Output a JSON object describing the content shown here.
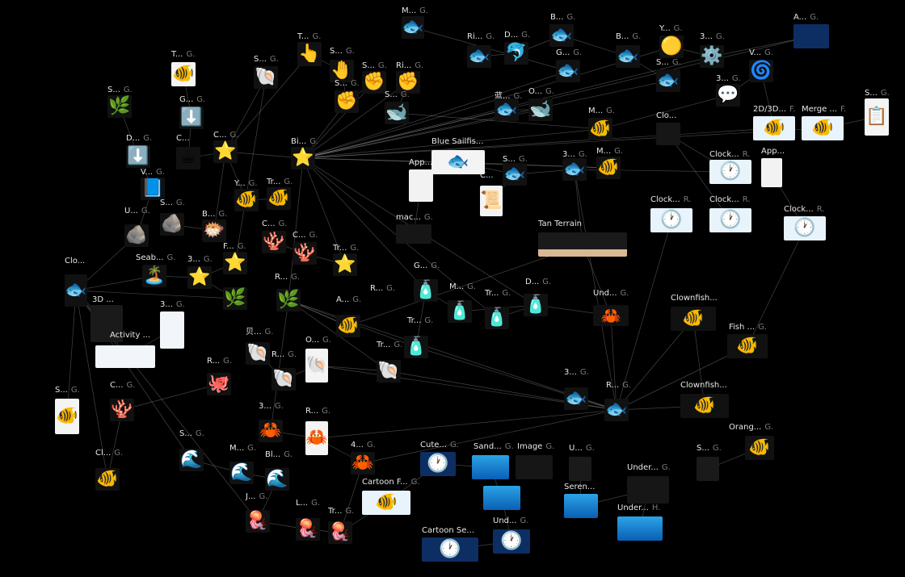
{
  "canvas": {
    "background": "#000000",
    "edge_color": "#bfbfbf"
  },
  "nodes": [
    {
      "id": "n1",
      "label": "M...",
      "tag": "G.",
      "icon": "🐟",
      "style": "icon"
    },
    {
      "id": "n2",
      "label": "B...",
      "tag": "G.",
      "icon": "🐟",
      "style": "icon"
    },
    {
      "id": "n3",
      "label": "A...",
      "tag": "G.",
      "icon": "clownfish-banner",
      "style": "wide"
    },
    {
      "id": "n4",
      "label": "T...",
      "tag": "G.",
      "icon": "👆",
      "style": "icon"
    },
    {
      "id": "n5",
      "label": "Ri...",
      "tag": "G.",
      "icon": "🐟",
      "style": "icon"
    },
    {
      "id": "n6",
      "label": "D...",
      "tag": "G.",
      "icon": "🐬",
      "style": "icon"
    },
    {
      "id": "n7",
      "label": "B...",
      "tag": "G.",
      "icon": "🐟",
      "style": "icon"
    },
    {
      "id": "n8",
      "label": "Y...",
      "tag": "G.",
      "icon": "🟡",
      "style": "icon"
    },
    {
      "id": "n9",
      "label": "3...",
      "tag": "G.",
      "icon": "⚙️",
      "style": "icon"
    },
    {
      "id": "n10",
      "label": "T...",
      "tag": "G.",
      "icon": "🐠",
      "style": "paper"
    },
    {
      "id": "n11",
      "label": "S...",
      "tag": "G.",
      "icon": "🐚",
      "style": "icon"
    },
    {
      "id": "n12",
      "label": "S...",
      "tag": "G.",
      "icon": "🤚",
      "style": "icon"
    },
    {
      "id": "n13",
      "label": "S...",
      "tag": "G.",
      "icon": "✊",
      "style": "icon"
    },
    {
      "id": "n14",
      "label": "Ri...",
      "tag": "G.",
      "icon": "✊",
      "style": "icon"
    },
    {
      "id": "n15",
      "label": "G...",
      "tag": "G.",
      "icon": "🐟",
      "style": "icon"
    },
    {
      "id": "n16",
      "label": "S...",
      "tag": "G.",
      "icon": "🐟",
      "style": "icon"
    },
    {
      "id": "n17",
      "label": "V...",
      "tag": "G.",
      "icon": "🌀",
      "style": "icon"
    },
    {
      "id": "n18",
      "label": "S...",
      "tag": "G.",
      "icon": "🌿",
      "style": "icon"
    },
    {
      "id": "n19",
      "label": "G...",
      "tag": "G.",
      "icon": "⬇️",
      "style": "icon"
    },
    {
      "id": "n20",
      "label": "S...",
      "tag": "G.",
      "icon": "✊",
      "style": "icon"
    },
    {
      "id": "n21",
      "label": "S...",
      "tag": "G.",
      "icon": "🐋",
      "style": "icon"
    },
    {
      "id": "n22",
      "label": "蓝...",
      "tag": "G.",
      "icon": "🐟",
      "style": "icon"
    },
    {
      "id": "n23",
      "label": "O...",
      "tag": "G.",
      "icon": "🐋",
      "style": "icon"
    },
    {
      "id": "n24",
      "label": "3...",
      "tag": "G.",
      "icon": "💬",
      "style": "icon"
    },
    {
      "id": "n25",
      "label": "S...",
      "tag": "G.",
      "icon": "📋",
      "style": "paper"
    },
    {
      "id": "n26",
      "label": "M...",
      "tag": "G.",
      "icon": "🐠",
      "style": "icon"
    },
    {
      "id": "n27",
      "label": "Clo...",
      "tag": "",
      "icon": "",
      "style": "black"
    },
    {
      "id": "n28",
      "label": "2D/3D...",
      "tag": "F.",
      "icon": "🐠",
      "style": "wide-light"
    },
    {
      "id": "n29",
      "label": "Merge ...",
      "tag": "F.",
      "icon": "🐠",
      "style": "wide-light"
    },
    {
      "id": "n30",
      "label": "D...",
      "tag": "G.",
      "icon": "⬇️",
      "style": "icon"
    },
    {
      "id": "n31",
      "label": "C...",
      "tag": "G.",
      "icon": "⭐",
      "style": "icon"
    },
    {
      "id": "n32",
      "label": "C...",
      "tag": "",
      "icon": "☕",
      "style": "icon"
    },
    {
      "id": "n33",
      "label": "Bi...",
      "tag": "G.",
      "icon": "⭐",
      "style": "icon"
    },
    {
      "id": "n34",
      "label": "Blue Sailfis...",
      "tag": "",
      "icon": "🐟",
      "style": "paper"
    },
    {
      "id": "n35",
      "label": "App...",
      "tag": "",
      "icon": "",
      "style": "doc"
    },
    {
      "id": "n36",
      "label": "S...",
      "tag": "G.",
      "icon": "🐟",
      "style": "icon"
    },
    {
      "id": "n37",
      "label": "3...",
      "tag": "G.",
      "icon": "🐟",
      "style": "icon"
    },
    {
      "id": "n38",
      "label": "M...",
      "tag": "G.",
      "icon": "🐠",
      "style": "icon"
    },
    {
      "id": "n39",
      "label": "Clock...",
      "tag": "R.",
      "icon": "🕐",
      "style": "wide-light"
    },
    {
      "id": "n40",
      "label": "App...",
      "tag": "",
      "icon": "",
      "style": "doc"
    },
    {
      "id": "n41",
      "label": "V...",
      "tag": "G.",
      "icon": "📘",
      "style": "icon"
    },
    {
      "id": "n42",
      "label": "C...",
      "tag": "",
      "icon": "📜",
      "style": "paper"
    },
    {
      "id": "n43",
      "label": "Y...",
      "tag": "G.",
      "icon": "🐠",
      "style": "icon"
    },
    {
      "id": "n44",
      "label": "Tr...",
      "tag": "G.",
      "icon": "🐠",
      "style": "icon"
    },
    {
      "id": "n45",
      "label": "S...",
      "tag": "G.",
      "icon": "🪨",
      "style": "icon"
    },
    {
      "id": "n46",
      "label": "U...",
      "tag": "G.",
      "icon": "🪨",
      "style": "icon"
    },
    {
      "id": "n47",
      "label": "B...",
      "tag": "G.",
      "icon": "🐡",
      "style": "icon"
    },
    {
      "id": "n48",
      "label": "mac...",
      "tag": "G.",
      "icon": "",
      "style": "black"
    },
    {
      "id": "n49",
      "label": "Tan Terrain",
      "tag": "",
      "icon": "",
      "style": "terrain"
    },
    {
      "id": "n50",
      "label": "Clock...",
      "tag": "R.",
      "icon": "🕐",
      "style": "wide-light"
    },
    {
      "id": "n51",
      "label": "Clock...",
      "tag": "R.",
      "icon": "🕐",
      "style": "wide-light"
    },
    {
      "id": "n52",
      "label": "Clock...",
      "tag": "R.",
      "icon": "🕐",
      "style": "wide-light"
    },
    {
      "id": "n53",
      "label": "C...",
      "tag": "G.",
      "icon": "🪸",
      "style": "icon"
    },
    {
      "id": "n54",
      "label": "C...",
      "tag": "G.",
      "icon": "🪸",
      "style": "icon"
    },
    {
      "id": "n55",
      "label": "F...",
      "tag": "G.",
      "icon": "⭐",
      "style": "icon"
    },
    {
      "id": "n56",
      "label": "Tr...",
      "tag": "G.",
      "icon": "⭐",
      "style": "icon"
    },
    {
      "id": "n57",
      "label": "Clo...",
      "tag": "",
      "icon": "🐟",
      "style": "icon"
    },
    {
      "id": "n58",
      "label": "Seab...",
      "tag": "G.",
      "icon": "🏝️",
      "style": "icon"
    },
    {
      "id": "n59",
      "label": "3...",
      "tag": "G.",
      "icon": "⭐",
      "style": "icon"
    },
    {
      "id": "n60",
      "label": "R...",
      "tag": "G.",
      "icon": "🌿",
      "style": "icon"
    },
    {
      "id": "n61",
      "label": "G...",
      "tag": "G.",
      "icon": "🧴",
      "style": "icon"
    },
    {
      "id": "n62",
      "label": "R...",
      "tag": "G.",
      "icon": "🌿",
      "style": "icon"
    },
    {
      "id": "n63",
      "label": "M...",
      "tag": "G.",
      "icon": "🧴",
      "style": "icon"
    },
    {
      "id": "n64",
      "label": "D...",
      "tag": "G.",
      "icon": "🧴",
      "style": "icon"
    },
    {
      "id": "n65",
      "label": "Und...",
      "tag": "G.",
      "icon": "🦀",
      "style": "icon"
    },
    {
      "id": "n66",
      "label": "Clownfish...",
      "tag": "",
      "icon": "🐠",
      "style": "icon"
    },
    {
      "id": "n67",
      "label": "3D ...",
      "tag": "",
      "icon": "",
      "style": "dark"
    },
    {
      "id": "n68",
      "label": "3...",
      "tag": "G.",
      "icon": "",
      "style": "chart"
    },
    {
      "id": "n69",
      "label": "A...",
      "tag": "G.",
      "icon": "🐠",
      "style": "icon"
    },
    {
      "id": "n70",
      "label": "Tr...",
      "tag": "G.",
      "icon": "🧴",
      "style": "icon"
    },
    {
      "id": "n71",
      "label": "Tr...",
      "tag": "G.",
      "icon": "🧴",
      "style": "icon"
    },
    {
      "id": "n72",
      "label": "Fish ...",
      "tag": "G.",
      "icon": "🐠",
      "style": "icon"
    },
    {
      "id": "n73",
      "label": "Activity ...",
      "tag": "",
      "icon": "",
      "style": "chart"
    },
    {
      "id": "n74",
      "label": "贝...",
      "tag": "G.",
      "icon": "🐚",
      "style": "icon"
    },
    {
      "id": "n75",
      "label": "R...",
      "tag": "G.",
      "icon": "🐚",
      "style": "icon"
    },
    {
      "id": "n76",
      "label": "O...",
      "tag": "G.",
      "icon": "🐚",
      "style": "paper"
    },
    {
      "id": "n77",
      "label": "Tr...",
      "tag": "G.",
      "icon": "🐚",
      "style": "icon"
    },
    {
      "id": "n78",
      "label": "R...",
      "tag": "G.",
      "icon": "🐙",
      "style": "icon"
    },
    {
      "id": "n79",
      "label": "3...",
      "tag": "G.",
      "icon": "🐟",
      "style": "icon"
    },
    {
      "id": "n80",
      "label": "R...",
      "tag": "G.",
      "icon": "🐟",
      "style": "icon"
    },
    {
      "id": "n81",
      "label": "Clownfish...",
      "tag": "",
      "icon": "🐠",
      "style": "icon"
    },
    {
      "id": "n82",
      "label": "S...",
      "tag": "G.",
      "icon": "🐠",
      "style": "paper"
    },
    {
      "id": "n83",
      "label": "C...",
      "tag": "G.",
      "icon": "🪸",
      "style": "icon"
    },
    {
      "id": "n84",
      "label": "3...",
      "tag": "G.",
      "icon": "🦀",
      "style": "icon"
    },
    {
      "id": "n85",
      "label": "R...",
      "tag": "G.",
      "icon": "🦀",
      "style": "paper"
    },
    {
      "id": "n86",
      "label": "Orang...",
      "tag": "G.",
      "icon": "🐠",
      "style": "icon"
    },
    {
      "id": "n87",
      "label": "S...",
      "tag": "G.",
      "icon": "🌊",
      "style": "icon"
    },
    {
      "id": "n88",
      "label": "Cute...",
      "tag": "G.",
      "icon": "🕐",
      "style": "wide"
    },
    {
      "id": "n89",
      "label": "Sand...",
      "tag": "G.",
      "icon": "",
      "style": "ocean"
    },
    {
      "id": "n90",
      "label": "Image",
      "tag": "G.",
      "icon": "",
      "style": "black"
    },
    {
      "id": "n91",
      "label": "U...",
      "tag": "G.",
      "icon": "",
      "style": "dark"
    },
    {
      "id": "n92",
      "label": "S...",
      "tag": "G.",
      "icon": "",
      "style": "dark"
    },
    {
      "id": "n93",
      "label": "Cl...",
      "tag": "G.",
      "icon": "🐠",
      "style": "icon"
    },
    {
      "id": "n94",
      "label": "M...",
      "tag": "G.",
      "icon": "🌊",
      "style": "icon"
    },
    {
      "id": "n95",
      "label": "Bl...",
      "tag": "G.",
      "icon": "🌊",
      "style": "icon"
    },
    {
      "id": "n96",
      "label": "4...",
      "tag": "G.",
      "icon": "🦀",
      "style": "icon"
    },
    {
      "id": "n97",
      "label": "Cartoon F...",
      "tag": "G.",
      "icon": "🐠",
      "style": "wide-light"
    },
    {
      "id": "n98",
      "label": "",
      "tag": "",
      "icon": "",
      "style": "ocean"
    },
    {
      "id": "n99",
      "label": "Seren...",
      "tag": "",
      "icon": "",
      "style": "ocean"
    },
    {
      "id": "n100",
      "label": "Under...",
      "tag": "G.",
      "icon": "",
      "style": "black"
    },
    {
      "id": "n101",
      "label": "J...",
      "tag": "G.",
      "icon": "🪼",
      "style": "icon"
    },
    {
      "id": "n102",
      "label": "L...",
      "tag": "G.",
      "icon": "🪼",
      "style": "icon"
    },
    {
      "id": "n103",
      "label": "Tr...",
      "tag": "G.",
      "icon": "🪼",
      "style": "icon"
    },
    {
      "id": "n104",
      "label": "Cartoon Se...",
      "tag": "",
      "icon": "🕐",
      "style": "wide"
    },
    {
      "id": "n105",
      "label": "Und...",
      "tag": "G.",
      "icon": "🕐",
      "style": "wide"
    },
    {
      "id": "n106",
      "label": "Under...",
      "tag": "H.",
      "icon": "",
      "style": "ocean"
    }
  ]
}
